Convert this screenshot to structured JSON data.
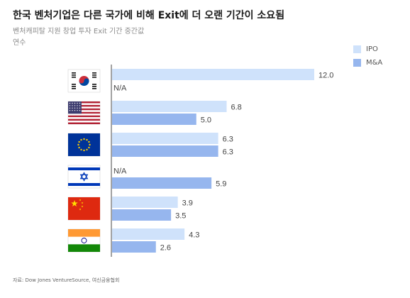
{
  "title": "한국 벤처기업은 다른 국가에 비해 Exit에 더 오랜 기간이 소요됨",
  "subtitle": "벤처캐피탈 지원 창업 투자 Exit 기간 중간값",
  "unit_label": "연수",
  "source": "자료: Dow Jones VentureSource, 여신금융협회",
  "colors": {
    "ipo": "#cfe2fb",
    "ma": "#96b6ee",
    "axis": "#444444",
    "text": "#444444"
  },
  "chart_data": {
    "type": "bar",
    "orientation": "horizontal",
    "categories": [
      "Korea",
      "United States",
      "European Union",
      "Israel",
      "China",
      "India"
    ],
    "series": [
      {
        "name": "IPO",
        "values": [
          12.0,
          6.8,
          6.3,
          null,
          3.9,
          4.3
        ]
      },
      {
        "name": "M&A",
        "values": [
          null,
          5.0,
          6.3,
          5.9,
          3.5,
          2.6
        ]
      }
    ],
    "missing_label": "N/A",
    "xlim": [
      0,
      12
    ],
    "grid": false,
    "legend_position": "top-right"
  },
  "flags": [
    {
      "icon": "south-korea-flag-icon"
    },
    {
      "icon": "usa-flag-icon"
    },
    {
      "icon": "eu-flag-icon"
    },
    {
      "icon": "israel-flag-icon"
    },
    {
      "icon": "china-flag-icon"
    },
    {
      "icon": "india-flag-icon"
    }
  ]
}
